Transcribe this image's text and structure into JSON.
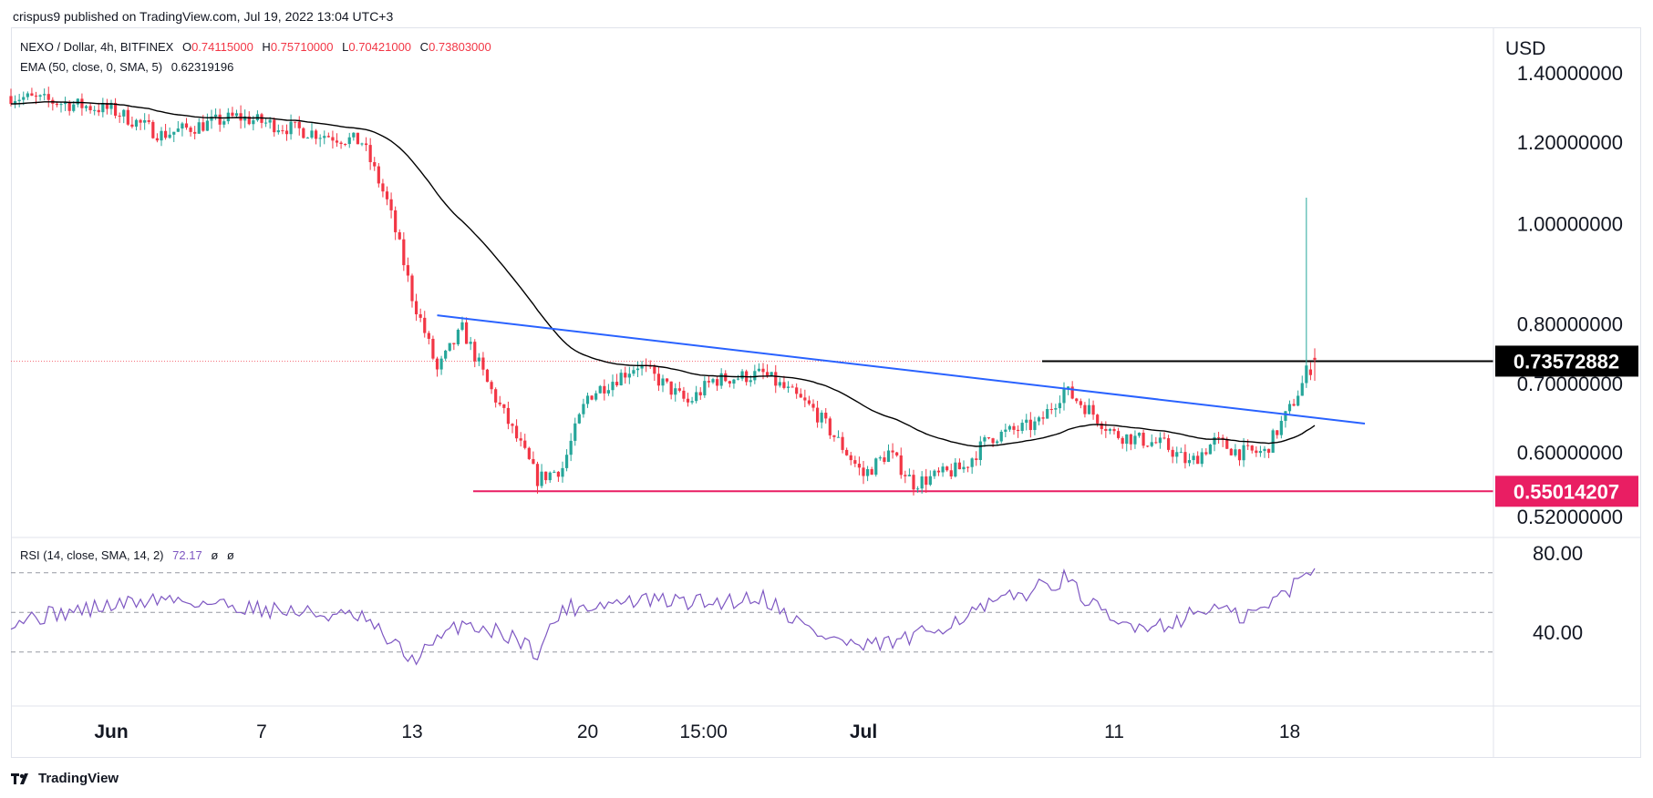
{
  "attribution": "crispus9 published on TradingView.com, Jul 19, 2022 13:04 UTC+3",
  "legend": {
    "symbol": "NEXO / Dollar, 4h, BITFINEX",
    "open_label": "O",
    "open": "0.74115000",
    "high_label": "H",
    "high": "0.75710000",
    "low_label": "L",
    "low": "0.70421000",
    "close_label": "C",
    "close": "0.73803000",
    "ema_label": "EMA (50, close, 0, SMA, 5)",
    "ema_value": "0.62319196",
    "rsi_label": "RSI (14, close, SMA, 14, 2)",
    "rsi_value": "72.17",
    "rsi_extra1": "ø",
    "rsi_extra2": "ø"
  },
  "currency": "USD",
  "footer_brand": "TradingView",
  "colors": {
    "up": "#26a69a",
    "down": "#f23645",
    "ema": "#000000",
    "trendline": "#2962ff",
    "support": "#e91e63",
    "resistance": "#000000",
    "rsi": "#7e57c2"
  },
  "chart_data": {
    "type": "candlestick",
    "timeframe": "4h",
    "price_axis_ticks": [
      "0.52000000",
      "0.60000000",
      "0.70000000",
      "0.80000000",
      "1.00000000",
      "1.20000000",
      "1.40000000"
    ],
    "price_axis_tick_values": [
      0.52,
      0.6,
      0.7,
      0.8,
      1.0,
      1.2,
      1.4
    ],
    "x_tick_labels": [
      "Jun",
      "7",
      "13",
      "20",
      "15:00",
      "Jul",
      "11",
      "18"
    ],
    "price_badges": [
      {
        "label": "0.73572882",
        "value": 0.73572882,
        "color": "#000000"
      },
      {
        "label": "0.55014207",
        "value": 0.55014207,
        "color": "#e91e63"
      }
    ],
    "anchors": [
      {
        "date": "May 28",
        "price": 1.33
      },
      {
        "date": "Jun 1",
        "price": 1.29
      },
      {
        "date": "Jun 3",
        "price": 1.22
      },
      {
        "date": "Jun 6",
        "price": 1.27
      },
      {
        "date": "Jun 8",
        "price": 1.24
      },
      {
        "date": "Jun 11",
        "price": 1.2
      },
      {
        "date": "Jun 12",
        "price": 1.05
      },
      {
        "date": "Jun 13",
        "price": 0.85
      },
      {
        "date": "Jun 14",
        "price": 0.72
      },
      {
        "date": "Jun 15",
        "price": 0.79
      },
      {
        "date": "Jun 16",
        "price": 0.7
      },
      {
        "date": "Jun 17",
        "price": 0.63
      },
      {
        "date": "Jun 18",
        "price": 0.565
      },
      {
        "date": "Jun 19",
        "price": 0.58
      },
      {
        "date": "Jun 20",
        "price": 0.68
      },
      {
        "date": "Jun 22",
        "price": 0.73
      },
      {
        "date": "Jun 24",
        "price": 0.67
      },
      {
        "date": "Jun 25",
        "price": 0.705
      },
      {
        "date": "Jun 27",
        "price": 0.715
      },
      {
        "date": "Jun 29",
        "price": 0.66
      },
      {
        "date": "Jul 1",
        "price": 0.57
      },
      {
        "date": "Jul 2",
        "price": 0.6
      },
      {
        "date": "Jul 3",
        "price": 0.56
      },
      {
        "date": "Jul 5",
        "price": 0.58
      },
      {
        "date": "Jul 6",
        "price": 0.62
      },
      {
        "date": "Jul 8",
        "price": 0.64
      },
      {
        "date": "Jul 9",
        "price": 0.69
      },
      {
        "date": "Jul 10",
        "price": 0.66
      },
      {
        "date": "Jul 11",
        "price": 0.625
      },
      {
        "date": "Jul 13",
        "price": 0.61
      },
      {
        "date": "Jul 14",
        "price": 0.585
      },
      {
        "date": "Jul 15",
        "price": 0.615
      },
      {
        "date": "Jul 16",
        "price": 0.6
      },
      {
        "date": "Jul 17",
        "price": 0.6
      },
      {
        "date": "Jul 18",
        "price": 0.66
      },
      {
        "date": "Jul 19",
        "price": 0.738
      }
    ],
    "spike_high": 1.06,
    "ema_period": 50,
    "ema_last": 0.62319196,
    "trendline": {
      "start": {
        "date": "Jun 14",
        "price": 0.815
      },
      "end": {
        "date": "Jul 21",
        "price": 0.64
      }
    },
    "support_level": 0.55014207,
    "resistance_level": 0.73572882,
    "rsi": {
      "ticks": [
        "40.00",
        "80.00"
      ],
      "levels": [
        30,
        50,
        70
      ],
      "last": 72.17,
      "anchors": [
        {
          "date": "May 28",
          "value": 46
        },
        {
          "date": "Jun 3",
          "value": 57
        },
        {
          "date": "Jun 7",
          "value": 52
        },
        {
          "date": "Jun 11",
          "value": 47
        },
        {
          "date": "Jun 13",
          "value": 26
        },
        {
          "date": "Jun 14",
          "value": 35
        },
        {
          "date": "Jun 15",
          "value": 45
        },
        {
          "date": "Jun 17",
          "value": 38
        },
        {
          "date": "Jun 18",
          "value": 30
        },
        {
          "date": "Jun 19",
          "value": 52
        },
        {
          "date": "Jun 22",
          "value": 56
        },
        {
          "date": "Jun 25",
          "value": 55
        },
        {
          "date": "Jun 27",
          "value": 58
        },
        {
          "date": "Jun 29",
          "value": 40
        },
        {
          "date": "Jul 1",
          "value": 32
        },
        {
          "date": "Jul 3",
          "value": 37
        },
        {
          "date": "Jul 5",
          "value": 48
        },
        {
          "date": "Jul 7",
          "value": 58
        },
        {
          "date": "Jul 9",
          "value": 67
        },
        {
          "date": "Jul 10",
          "value": 55
        },
        {
          "date": "Jul 11",
          "value": 44
        },
        {
          "date": "Jul 13",
          "value": 44
        },
        {
          "date": "Jul 15",
          "value": 53
        },
        {
          "date": "Jul 16",
          "value": 47
        },
        {
          "date": "Jul 17",
          "value": 52
        },
        {
          "date": "Jul 18",
          "value": 62
        },
        {
          "date": "Jul 19",
          "value": 72.17
        }
      ]
    }
  }
}
